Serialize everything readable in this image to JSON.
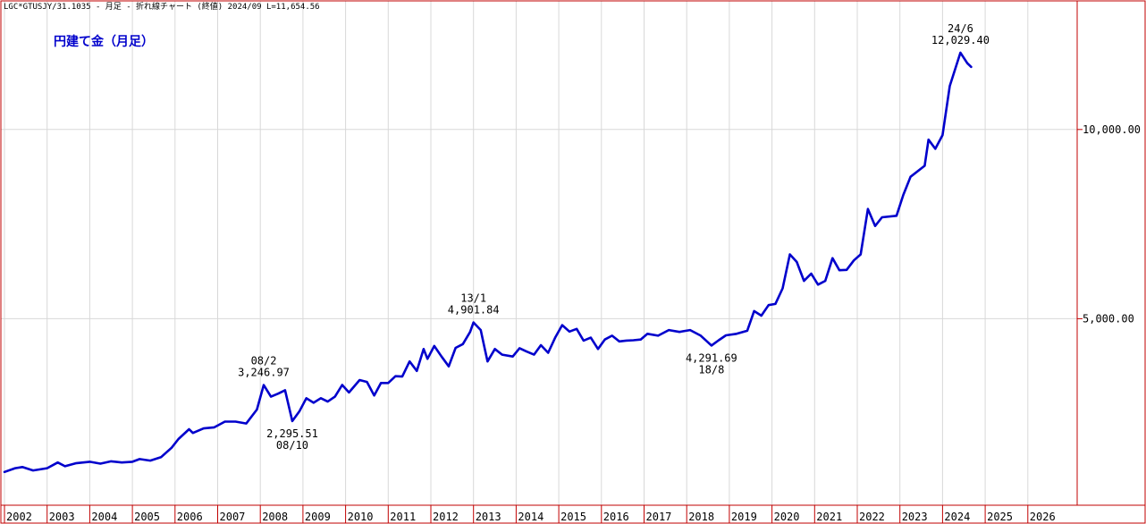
{
  "header": {
    "text": "LGC*GTUSJY/31.1035 - 月足 - 折れ線チャート (終値) 2024/09 L=11,654.56"
  },
  "chart_data": {
    "type": "line",
    "title": "円建て金（月足）",
    "xlabel": "",
    "ylabel": "",
    "xlim": [
      2002,
      2027
    ],
    "ylim": [
      0,
      13300
    ],
    "grid": true,
    "colors": {
      "series": "#0000cc",
      "title": "#0000cc",
      "frame": "#c00000",
      "grid": "#d8d8d8"
    },
    "x_ticks": [
      "2002",
      "2003",
      "2004",
      "2005",
      "2006",
      "2007",
      "2008",
      "2009",
      "2010",
      "2011",
      "2012",
      "2013",
      "2014",
      "2015",
      "2016",
      "2017",
      "2018",
      "2019",
      "2020",
      "2021",
      "2022",
      "2023",
      "2024",
      "2025",
      "2026"
    ],
    "y_ticks": [
      {
        "value": 5000,
        "label": "5,000.00"
      },
      {
        "value": 10000,
        "label": "10,000.00"
      }
    ],
    "annotations": [
      {
        "x": 2008.08,
        "y": 3246.97,
        "lines": [
          "08/2",
          "3,246.97"
        ],
        "position": "above"
      },
      {
        "x": 2008.75,
        "y": 2295.51,
        "lines": [
          "2,295.51",
          "08/10"
        ],
        "position": "below"
      },
      {
        "x": 2013.0,
        "y": 4901.84,
        "lines": [
          "13/1",
          "4,901.84"
        ],
        "position": "above"
      },
      {
        "x": 2018.58,
        "y": 4291.69,
        "lines": [
          "4,291.69",
          "18/8"
        ],
        "position": "below"
      },
      {
        "x": 2024.42,
        "y": 12029.4,
        "lines": [
          "24/6",
          "12,029.40"
        ],
        "position": "above"
      }
    ],
    "series": [
      {
        "name": "",
        "points": [
          [
            2002.0,
            950
          ],
          [
            2002.25,
            1050
          ],
          [
            2002.42,
            1080
          ],
          [
            2002.67,
            990
          ],
          [
            2003.0,
            1050
          ],
          [
            2003.25,
            1200
          ],
          [
            2003.42,
            1100
          ],
          [
            2003.67,
            1180
          ],
          [
            2004.0,
            1220
          ],
          [
            2004.25,
            1170
          ],
          [
            2004.5,
            1230
          ],
          [
            2004.75,
            1200
          ],
          [
            2005.0,
            1220
          ],
          [
            2005.17,
            1290
          ],
          [
            2005.42,
            1250
          ],
          [
            2005.67,
            1340
          ],
          [
            2005.92,
            1590
          ],
          [
            2006.08,
            1820
          ],
          [
            2006.33,
            2080
          ],
          [
            2006.42,
            1980
          ],
          [
            2006.67,
            2100
          ],
          [
            2006.92,
            2130
          ],
          [
            2007.17,
            2280
          ],
          [
            2007.42,
            2280
          ],
          [
            2007.67,
            2230
          ],
          [
            2007.92,
            2600
          ],
          [
            2008.08,
            3246.97
          ],
          [
            2008.25,
            2940
          ],
          [
            2008.42,
            3020
          ],
          [
            2008.58,
            3110
          ],
          [
            2008.75,
            2295.51
          ],
          [
            2008.92,
            2560
          ],
          [
            2009.08,
            2900
          ],
          [
            2009.25,
            2780
          ],
          [
            2009.42,
            2900
          ],
          [
            2009.58,
            2810
          ],
          [
            2009.75,
            2940
          ],
          [
            2009.92,
            3250
          ],
          [
            2010.08,
            3050
          ],
          [
            2010.33,
            3380
          ],
          [
            2010.5,
            3330
          ],
          [
            2010.67,
            2970
          ],
          [
            2010.83,
            3300
          ],
          [
            2011.0,
            3300
          ],
          [
            2011.17,
            3480
          ],
          [
            2011.33,
            3470
          ],
          [
            2011.5,
            3870
          ],
          [
            2011.67,
            3620
          ],
          [
            2011.83,
            4200
          ],
          [
            2011.92,
            3940
          ],
          [
            2012.08,
            4280
          ],
          [
            2012.25,
            4000
          ],
          [
            2012.42,
            3740
          ],
          [
            2012.58,
            4230
          ],
          [
            2012.75,
            4330
          ],
          [
            2012.92,
            4650
          ],
          [
            2013.0,
            4901.84
          ],
          [
            2013.17,
            4700
          ],
          [
            2013.25,
            4280
          ],
          [
            2013.33,
            3870
          ],
          [
            2013.5,
            4200
          ],
          [
            2013.67,
            4050
          ],
          [
            2013.92,
            4000
          ],
          [
            2014.08,
            4220
          ],
          [
            2014.25,
            4130
          ],
          [
            2014.42,
            4050
          ],
          [
            2014.58,
            4300
          ],
          [
            2014.75,
            4100
          ],
          [
            2014.92,
            4510
          ],
          [
            2015.08,
            4830
          ],
          [
            2015.25,
            4660
          ],
          [
            2015.42,
            4730
          ],
          [
            2015.58,
            4420
          ],
          [
            2015.75,
            4500
          ],
          [
            2015.92,
            4200
          ],
          [
            2016.08,
            4450
          ],
          [
            2016.25,
            4550
          ],
          [
            2016.42,
            4400
          ],
          [
            2016.58,
            4420
          ],
          [
            2016.75,
            4430
          ],
          [
            2016.92,
            4450
          ],
          [
            2017.08,
            4600
          ],
          [
            2017.33,
            4550
          ],
          [
            2017.58,
            4700
          ],
          [
            2017.83,
            4650
          ],
          [
            2018.08,
            4700
          ],
          [
            2018.33,
            4550
          ],
          [
            2018.58,
            4291.69
          ],
          [
            2018.75,
            4430
          ],
          [
            2018.92,
            4560
          ],
          [
            2019.17,
            4600
          ],
          [
            2019.42,
            4680
          ],
          [
            2019.58,
            5200
          ],
          [
            2019.75,
            5080
          ],
          [
            2019.92,
            5360
          ],
          [
            2020.08,
            5390
          ],
          [
            2020.25,
            5800
          ],
          [
            2020.42,
            6700
          ],
          [
            2020.58,
            6500
          ],
          [
            2020.75,
            6000
          ],
          [
            2020.92,
            6190
          ],
          [
            2021.08,
            5900
          ],
          [
            2021.25,
            6000
          ],
          [
            2021.42,
            6600
          ],
          [
            2021.58,
            6280
          ],
          [
            2021.75,
            6290
          ],
          [
            2021.92,
            6540
          ],
          [
            2022.08,
            6700
          ],
          [
            2022.25,
            7900
          ],
          [
            2022.42,
            7450
          ],
          [
            2022.58,
            7680
          ],
          [
            2022.92,
            7720
          ],
          [
            2023.08,
            8270
          ],
          [
            2023.25,
            8750
          ],
          [
            2023.58,
            9040
          ],
          [
            2023.67,
            9730
          ],
          [
            2023.83,
            9490
          ],
          [
            2024.0,
            9850
          ],
          [
            2024.17,
            11150
          ],
          [
            2024.42,
            12029.4
          ],
          [
            2024.58,
            11750
          ],
          [
            2024.67,
            11654.56
          ]
        ]
      }
    ]
  }
}
